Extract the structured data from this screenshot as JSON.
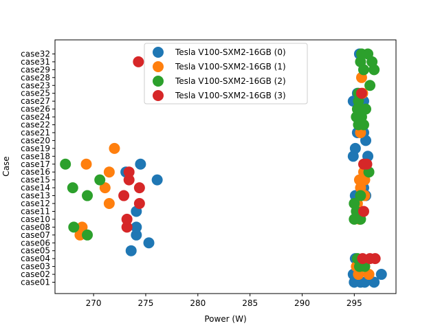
{
  "chart_data": {
    "type": "scatter",
    "title": "",
    "xlabel": "Power (W)",
    "ylabel": "Case",
    "xlim": [
      266.3,
      299.0
    ],
    "xticks": [
      270,
      275,
      280,
      285,
      290,
      295
    ],
    "categories": [
      "case01",
      "case02",
      "case03",
      "case04",
      "case05",
      "case06",
      "case07",
      "case08",
      "case10",
      "case11",
      "case12",
      "case13",
      "case14",
      "case15",
      "case16",
      "case17",
      "case18",
      "case19",
      "case20",
      "case21",
      "case22",
      "case24",
      "case26",
      "case27",
      "case25",
      "case23",
      "case28",
      "case29",
      "case31",
      "case32"
    ],
    "legend_position": "upper-center",
    "series": [
      {
        "name": "Tesla V100-SXM2-16GB (0)",
        "color": "#1f77b4",
        "points": [
          {
            "x": 295.0,
            "y": "case01"
          },
          {
            "x": 295.6,
            "y": "case01"
          },
          {
            "x": 296.0,
            "y": "case01"
          },
          {
            "x": 296.9,
            "y": "case01"
          },
          {
            "x": 294.9,
            "y": "case02"
          },
          {
            "x": 297.6,
            "y": "case02"
          },
          {
            "x": 295.3,
            "y": "case03"
          },
          {
            "x": 295.1,
            "y": "case04"
          },
          {
            "x": 273.6,
            "y": "case05"
          },
          {
            "x": 275.3,
            "y": "case06"
          },
          {
            "x": 274.1,
            "y": "case07"
          },
          {
            "x": 274.1,
            "y": "case08"
          },
          {
            "x": 274.1,
            "y": "case11"
          },
          {
            "x": 295.1,
            "y": "case13"
          },
          {
            "x": 296.1,
            "y": "case13"
          },
          {
            "x": 295.9,
            "y": "case14"
          },
          {
            "x": 276.1,
            "y": "case15"
          },
          {
            "x": 273.1,
            "y": "case16"
          },
          {
            "x": 274.5,
            "y": "case17"
          },
          {
            "x": 294.9,
            "y": "case18"
          },
          {
            "x": 296.3,
            "y": "case18"
          },
          {
            "x": 295.1,
            "y": "case19"
          },
          {
            "x": 296.1,
            "y": "case20"
          },
          {
            "x": 295.3,
            "y": "case21"
          },
          {
            "x": 295.9,
            "y": "case21"
          },
          {
            "x": 294.9,
            "y": "case27"
          },
          {
            "x": 295.9,
            "y": "case27"
          },
          {
            "x": 295.3,
            "y": "case25"
          },
          {
            "x": 295.5,
            "y": "case32"
          }
        ]
      },
      {
        "name": "Tesla V100-SXM2-16GB (1)",
        "color": "#ff7f0e",
        "points": [
          {
            "x": 295.4,
            "y": "case02"
          },
          {
            "x": 296.4,
            "y": "case02"
          },
          {
            "x": 295.2,
            "y": "case03"
          },
          {
            "x": 296.0,
            "y": "case03"
          },
          {
            "x": 268.7,
            "y": "case07"
          },
          {
            "x": 268.9,
            "y": "case08"
          },
          {
            "x": 295.5,
            "y": "case10"
          },
          {
            "x": 295.7,
            "y": "case11"
          },
          {
            "x": 271.5,
            "y": "case12"
          },
          {
            "x": 295.3,
            "y": "case12"
          },
          {
            "x": 296.0,
            "y": "case13"
          },
          {
            "x": 271.1,
            "y": "case14"
          },
          {
            "x": 295.6,
            "y": "case14"
          },
          {
            "x": 295.5,
            "y": "case15"
          },
          {
            "x": 296.0,
            "y": "case15"
          },
          {
            "x": 271.5,
            "y": "case16"
          },
          {
            "x": 295.9,
            "y": "case16"
          },
          {
            "x": 269.3,
            "y": "case17"
          },
          {
            "x": 272.0,
            "y": "case19"
          },
          {
            "x": 295.6,
            "y": "case21"
          },
          {
            "x": 295.6,
            "y": "case22"
          },
          {
            "x": 295.8,
            "y": "case25"
          },
          {
            "x": 295.7,
            "y": "case28"
          }
        ]
      },
      {
        "name": "Tesla V100-SXM2-16GB (2)",
        "color": "#2ca02c",
        "points": [
          {
            "x": 295.5,
            "y": "case03"
          },
          {
            "x": 296.0,
            "y": "case03"
          },
          {
            "x": 295.3,
            "y": "case04"
          },
          {
            "x": 269.4,
            "y": "case07"
          },
          {
            "x": 268.1,
            "y": "case08"
          },
          {
            "x": 295.0,
            "y": "case10"
          },
          {
            "x": 295.6,
            "y": "case10"
          },
          {
            "x": 295.2,
            "y": "case11"
          },
          {
            "x": 295.0,
            "y": "case12"
          },
          {
            "x": 269.4,
            "y": "case13"
          },
          {
            "x": 295.6,
            "y": "case13"
          },
          {
            "x": 268.0,
            "y": "case14"
          },
          {
            "x": 270.6,
            "y": "case15"
          },
          {
            "x": 296.4,
            "y": "case16"
          },
          {
            "x": 267.3,
            "y": "case17"
          },
          {
            "x": 295.4,
            "y": "case22"
          },
          {
            "x": 295.9,
            "y": "case22"
          },
          {
            "x": 295.2,
            "y": "case24"
          },
          {
            "x": 295.7,
            "y": "case24"
          },
          {
            "x": 295.3,
            "y": "case26"
          },
          {
            "x": 296.1,
            "y": "case26"
          },
          {
            "x": 295.4,
            "y": "case27"
          },
          {
            "x": 295.4,
            "y": "case25"
          },
          {
            "x": 296.5,
            "y": "case23"
          },
          {
            "x": 295.9,
            "y": "case29"
          },
          {
            "x": 296.9,
            "y": "case29"
          },
          {
            "x": 295.6,
            "y": "case31"
          },
          {
            "x": 296.7,
            "y": "case31"
          },
          {
            "x": 295.7,
            "y": "case32"
          },
          {
            "x": 296.3,
            "y": "case32"
          }
        ]
      },
      {
        "name": "Tesla V100-SXM2-16GB (3)",
        "color": "#d62728",
        "points": [
          {
            "x": 295.8,
            "y": "case04"
          },
          {
            "x": 296.5,
            "y": "case04"
          },
          {
            "x": 297.0,
            "y": "case04"
          },
          {
            "x": 273.2,
            "y": "case08"
          },
          {
            "x": 273.2,
            "y": "case10"
          },
          {
            "x": 295.9,
            "y": "case11"
          },
          {
            "x": 274.4,
            "y": "case12"
          },
          {
            "x": 272.9,
            "y": "case13"
          },
          {
            "x": 274.4,
            "y": "case14"
          },
          {
            "x": 273.4,
            "y": "case15"
          },
          {
            "x": 273.4,
            "y": "case16"
          },
          {
            "x": 295.9,
            "y": "case17"
          },
          {
            "x": 296.2,
            "y": "case17"
          },
          {
            "x": 295.7,
            "y": "case25"
          },
          {
            "x": 274.3,
            "y": "case31"
          }
        ]
      }
    ]
  }
}
